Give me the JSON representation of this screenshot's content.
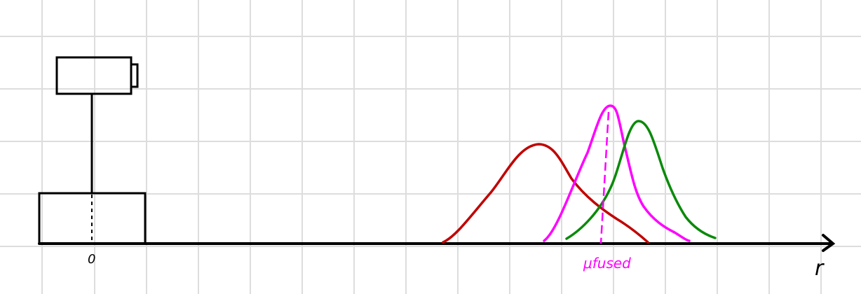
{
  "labels": {
    "origin": "0",
    "fused_mean": "μfused",
    "axis": "r"
  },
  "colors": {
    "grid": "#dddddd",
    "ink": "#000000",
    "red_curve": "#c00000",
    "magenta_curve": "#ff00ff",
    "green_curve": "#0a8a0a"
  },
  "curves": [
    {
      "name": "red-distribution",
      "color": "#c00000"
    },
    {
      "name": "magenta-distribution",
      "color": "#ff00ff"
    },
    {
      "name": "green-distribution",
      "color": "#0a8a0a"
    }
  ]
}
